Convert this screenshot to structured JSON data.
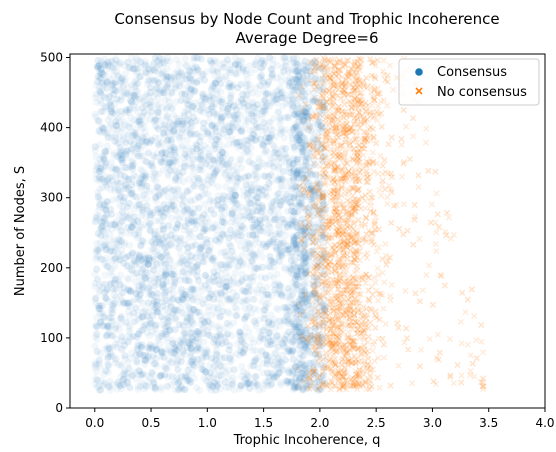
{
  "chart_data": {
    "type": "scatter",
    "title": "Consensus by Node Count and Trophic Incoherence",
    "subtitle": "Average Degree=6",
    "xlabel": "Trophic Incoherence, q",
    "ylabel": "Number of Nodes, S",
    "xlim": [
      -0.22,
      4.0
    ],
    "ylim": [
      0,
      505
    ],
    "xticks": [
      0.0,
      0.5,
      1.0,
      1.5,
      2.0,
      2.5,
      3.0,
      3.5,
      4.0
    ],
    "xtick_labels": [
      "0.0",
      "0.5",
      "1.0",
      "1.5",
      "2.0",
      "2.5",
      "3.0",
      "3.5",
      "4.0"
    ],
    "yticks": [
      0,
      100,
      200,
      300,
      400,
      500
    ],
    "ytick_labels": [
      "0",
      "100",
      "200",
      "300",
      "400",
      "500"
    ],
    "grid": false,
    "legend_position": "top-right",
    "series": [
      {
        "name": "Consensus",
        "marker": "circle",
        "color": "#1f77b4",
        "alpha": 0.06,
        "description_ranges": {
          "x_range_dense": [
            0.0,
            2.0
          ],
          "y_range": [
            25,
            500
          ]
        }
      },
      {
        "name": "No consensus",
        "marker": "x",
        "color": "#ff7f0e",
        "alpha": 0.08,
        "description_ranges": {
          "x_range_dense": [
            1.8,
            2.5
          ],
          "x_range_sparse_max": 3.5,
          "y_range": [
            25,
            500
          ]
        }
      }
    ]
  }
}
